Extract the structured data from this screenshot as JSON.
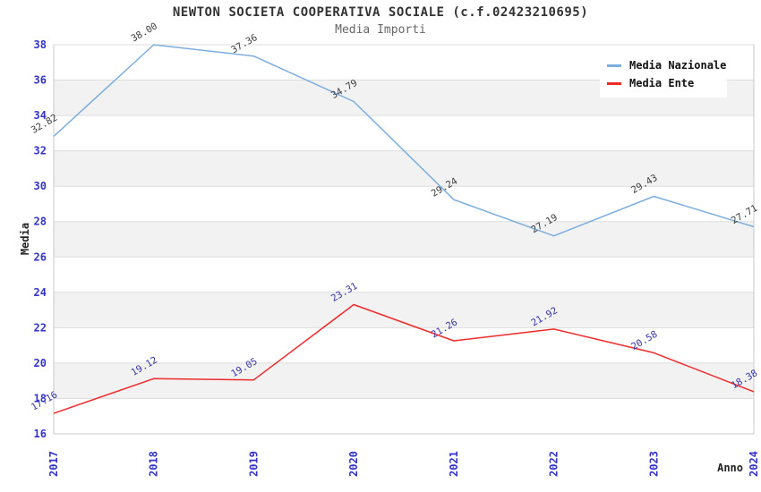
{
  "header": {
    "title": "NEWTON SOCIETA COOPERATIVA SOCIALE (c.f.02423210695)",
    "subtitle": "Media Importi"
  },
  "legend": {
    "items": [
      {
        "label": "Media Nazionale",
        "color": "#7daede"
      },
      {
        "label": "Media Ente",
        "color": "#ee2b2b"
      }
    ]
  },
  "chart_data": {
    "type": "line",
    "title": "NEWTON SOCIETA COOPERATIVA SOCIALE (c.f.02423210695)",
    "subtitle": "Media Importi",
    "x": [
      "2017",
      "2018",
      "2019",
      "2020",
      "2021",
      "2022",
      "2023",
      "2024"
    ],
    "series": [
      {
        "name": "Media Nazionale",
        "color": "#7daede",
        "label_color": "#3c3c3c",
        "values": [
          32.82,
          38.0,
          37.36,
          34.79,
          29.24,
          27.19,
          29.43,
          27.71
        ]
      },
      {
        "name": "Media Ente",
        "color": "#ee2b2b",
        "label_color": "#3434aa",
        "values": [
          17.16,
          19.12,
          19.05,
          23.31,
          21.26,
          21.92,
          20.58,
          18.38
        ]
      }
    ],
    "xlabel": "Anno",
    "ylabel": "Media",
    "ylim": [
      16,
      38
    ],
    "ytick_step": 2,
    "grid": true,
    "legend_position": "top-right",
    "axis_tick_color": "#3333cc",
    "band_color": "#f2f2f2",
    "grid_color": "#dddddd",
    "border_color": "#c8c8c8"
  }
}
